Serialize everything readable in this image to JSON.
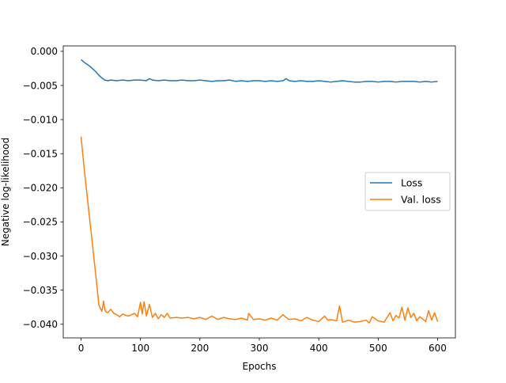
{
  "chart_data": {
    "type": "line",
    "title": "",
    "xlabel": "Epochs",
    "ylabel": "Negative log-likelihood",
    "xlim": [
      -30,
      630
    ],
    "ylim": [
      -0.042,
      0.0008
    ],
    "x_ticks": [
      0,
      100,
      200,
      300,
      400,
      500,
      600
    ],
    "x_tick_labels": [
      "0",
      "100",
      "200",
      "300",
      "400",
      "500",
      "600"
    ],
    "y_ticks": [
      0.0,
      -0.005,
      -0.01,
      -0.015,
      -0.02,
      -0.025,
      -0.03,
      -0.035,
      -0.04
    ],
    "y_tick_labels": [
      "0.000",
      "−0.005",
      "−0.010",
      "−0.015",
      "−0.020",
      "−0.025",
      "−0.030",
      "−0.035",
      "−0.040"
    ],
    "grid": false,
    "legend_position": "center-right",
    "series": [
      {
        "name": "Loss",
        "color": "#1f77b4",
        "x": [
          0,
          5,
          10,
          15,
          20,
          25,
          30,
          35,
          40,
          45,
          50,
          60,
          70,
          80,
          90,
          100,
          110,
          115,
          120,
          130,
          140,
          150,
          160,
          170,
          180,
          190,
          200,
          210,
          220,
          230,
          240,
          250,
          260,
          270,
          280,
          290,
          300,
          310,
          320,
          330,
          340,
          345,
          350,
          360,
          370,
          380,
          390,
          400,
          410,
          420,
          430,
          440,
          450,
          460,
          470,
          480,
          490,
          500,
          510,
          520,
          530,
          540,
          550,
          560,
          570,
          580,
          590,
          600
        ],
        "y": [
          -0.0012,
          -0.0016,
          -0.0019,
          -0.0022,
          -0.0026,
          -0.003,
          -0.0035,
          -0.0039,
          -0.0042,
          -0.0043,
          -0.0042,
          -0.0043,
          -0.0042,
          -0.0043,
          -0.0042,
          -0.0042,
          -0.0043,
          -0.004,
          -0.0042,
          -0.0043,
          -0.0042,
          -0.0043,
          -0.0043,
          -0.0042,
          -0.0043,
          -0.0043,
          -0.0042,
          -0.0043,
          -0.0044,
          -0.0043,
          -0.0043,
          -0.0042,
          -0.0044,
          -0.0043,
          -0.0044,
          -0.0043,
          -0.0043,
          -0.0044,
          -0.0043,
          -0.0044,
          -0.0043,
          -0.004,
          -0.0043,
          -0.0044,
          -0.0043,
          -0.0044,
          -0.0044,
          -0.0043,
          -0.0044,
          -0.0045,
          -0.0044,
          -0.0043,
          -0.0044,
          -0.0045,
          -0.0045,
          -0.0044,
          -0.0044,
          -0.0045,
          -0.0044,
          -0.0044,
          -0.0045,
          -0.0044,
          -0.0044,
          -0.0044,
          -0.0045,
          -0.0044,
          -0.0045,
          -0.0044
        ]
      },
      {
        "name": "Val. loss",
        "color": "#ff7f0e",
        "x": [
          0,
          5,
          10,
          15,
          20,
          25,
          30,
          35,
          38,
          40,
          42,
          45,
          50,
          55,
          60,
          65,
          70,
          75,
          80,
          90,
          95,
          100,
          103,
          106,
          110,
          115,
          120,
          125,
          130,
          135,
          140,
          145,
          150,
          160,
          170,
          180,
          190,
          200,
          210,
          220,
          230,
          240,
          250,
          260,
          270,
          280,
          282,
          290,
          300,
          310,
          320,
          330,
          340,
          345,
          350,
          360,
          370,
          380,
          390,
          400,
          410,
          415,
          420,
          430,
          435,
          440,
          450,
          460,
          470,
          480,
          485,
          490,
          500,
          510,
          520,
          525,
          530,
          535,
          540,
          545,
          550,
          555,
          560,
          565,
          570,
          580,
          585,
          590,
          595,
          600
        ],
        "y": [
          -0.0125,
          -0.017,
          -0.021,
          -0.025,
          -0.029,
          -0.033,
          -0.0372,
          -0.0381,
          -0.0366,
          -0.0379,
          -0.0382,
          -0.0383,
          -0.0378,
          -0.0384,
          -0.0386,
          -0.0389,
          -0.0385,
          -0.0387,
          -0.0388,
          -0.0384,
          -0.0389,
          -0.0368,
          -0.0385,
          -0.0367,
          -0.0388,
          -0.0371,
          -0.039,
          -0.0384,
          -0.0392,
          -0.0386,
          -0.039,
          -0.0384,
          -0.0391,
          -0.039,
          -0.0391,
          -0.039,
          -0.0392,
          -0.039,
          -0.0393,
          -0.0388,
          -0.0393,
          -0.039,
          -0.0392,
          -0.0393,
          -0.0391,
          -0.0394,
          -0.0384,
          -0.0393,
          -0.0392,
          -0.0394,
          -0.0391,
          -0.0394,
          -0.0386,
          -0.039,
          -0.0393,
          -0.0392,
          -0.0395,
          -0.039,
          -0.0394,
          -0.0396,
          -0.0388,
          -0.0394,
          -0.0393,
          -0.0395,
          -0.0373,
          -0.0397,
          -0.0394,
          -0.0397,
          -0.0396,
          -0.0394,
          -0.0398,
          -0.0389,
          -0.0395,
          -0.0397,
          -0.0383,
          -0.0395,
          -0.0387,
          -0.0391,
          -0.0375,
          -0.0394,
          -0.0376,
          -0.039,
          -0.0384,
          -0.0395,
          -0.0389,
          -0.0396,
          -0.038,
          -0.0394,
          -0.0383,
          -0.0396
        ]
      }
    ]
  }
}
